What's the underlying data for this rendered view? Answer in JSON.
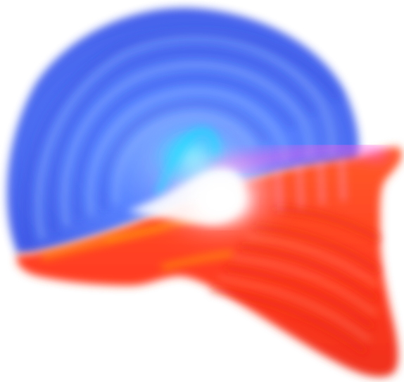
{
  "colors": {
    "background": "#ffffff",
    "blue_outer": "#3c5cf0",
    "blue_inner": "#4f7cff",
    "cyan_glow": "#1ad9ff",
    "magenta_glow": "#ff56e8",
    "red_main": "#ff3a1f",
    "red_deep": "#f0301a",
    "orange_highlight": "#ffb400",
    "white_core": "#ffffff"
  },
  "icons": {
    "blue_lobe": "blue-translucent-lobe",
    "red_lobe": "red-translucent-lobe",
    "glow": "white-core-glow"
  }
}
